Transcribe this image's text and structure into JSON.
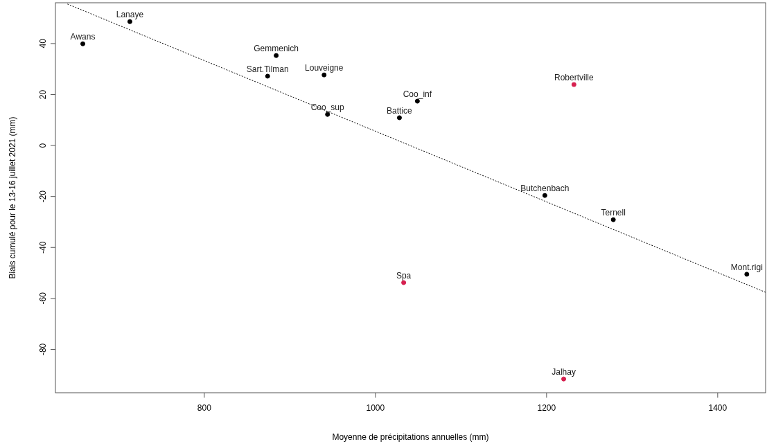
{
  "chart_data": {
    "type": "scatter",
    "xlabel": "Moyenne de précipitations annuelles (mm)",
    "ylabel": "Biais cumulé pour le 13-16 juillet 2021 (mm)",
    "xlim": [
      626,
      1456
    ],
    "ylim": [
      -97,
      56
    ],
    "xticks": [
      800,
      1000,
      1200,
      1400
    ],
    "yticks": [
      -80,
      -60,
      -40,
      -20,
      0,
      20,
      40
    ],
    "marker": "circle",
    "grid": false,
    "series": [
      {
        "color": "#000000",
        "x": [
          658,
          713,
          884,
          874,
          940,
          944,
          1049,
          1028,
          1198,
          1278,
          1434
        ],
        "values": [
          39.9,
          48.6,
          35.3,
          27.2,
          27.7,
          12.2,
          17.4,
          10.9,
          -19.6,
          -29.1,
          -50.5
        ]
      },
      {
        "color": "#d6204f",
        "x": [
          1232,
          1033,
          1220
        ],
        "values": [
          23.9,
          -53.8,
          -91.6
        ]
      },
      {
        "type": "line",
        "color": "#000000",
        "line_style": "dotted",
        "marker": "none",
        "x": [
          640,
          1456
        ],
        "values": [
          55.5,
          -57.6
        ]
      }
    ],
    "annotations": [
      {
        "text": "Awans",
        "x": 658,
        "y": 39.9
      },
      {
        "text": "Lanaye",
        "x": 713,
        "y": 48.6
      },
      {
        "text": "Gemmenich",
        "x": 884,
        "y": 35.3
      },
      {
        "text": "Sart.Tilman",
        "x": 874,
        "y": 27.2
      },
      {
        "text": "Louveigne",
        "x": 940,
        "y": 27.7
      },
      {
        "text": "Coo_sup",
        "x": 944,
        "y": 12.2
      },
      {
        "text": "Coo_inf",
        "x": 1049,
        "y": 17.4
      },
      {
        "text": "Battice",
        "x": 1028,
        "y": 10.9
      },
      {
        "text": "Butchenbach",
        "x": 1198,
        "y": -19.6
      },
      {
        "text": "Ternell",
        "x": 1278,
        "y": -29.1
      },
      {
        "text": "Mont.rigi",
        "x": 1434,
        "y": -50.5
      },
      {
        "text": "Robertville",
        "x": 1232,
        "y": 23.9
      },
      {
        "text": "Spa",
        "x": 1033,
        "y": -53.8
      },
      {
        "text": "Jalhay",
        "x": 1220,
        "y": -91.6
      }
    ]
  }
}
